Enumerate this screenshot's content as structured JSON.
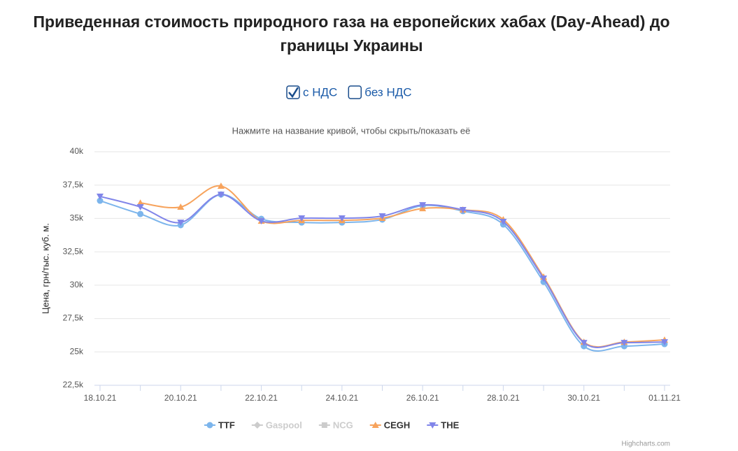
{
  "title": "Приведенная стоимость природного газа на европейских хабах (Day-Ahead) до границы Украины",
  "controls": [
    {
      "label": "с НДС",
      "checked": true
    },
    {
      "label": "без НДС",
      "checked": false
    }
  ],
  "chart_data": {
    "type": "line",
    "subtitle": "Нажмите на название кривой, чтобы скрыть/показать её",
    "y_label": "Цена, грн/тыс. куб. м.",
    "credits": "Highcharts.com",
    "categories": [
      "18.10.21",
      null,
      "20.10.21",
      null,
      "22.10.21",
      null,
      "24.10.21",
      null,
      "26.10.21",
      null,
      "28.10.21",
      null,
      "30.10.21",
      null,
      "01.11.21"
    ],
    "ylim": [
      22500,
      40000
    ],
    "yticks": [
      {
        "value": 22500,
        "label": "22,5k"
      },
      {
        "value": 25000,
        "label": "25k"
      },
      {
        "value": 27500,
        "label": "27,5k"
      },
      {
        "value": 30000,
        "label": "30k"
      },
      {
        "value": 32500,
        "label": "32,5k"
      },
      {
        "value": 35000,
        "label": "35k"
      },
      {
        "value": 37500,
        "label": "37,5k"
      },
      {
        "value": 40000,
        "label": "40k"
      }
    ],
    "grid": true,
    "smooth": true,
    "series": [
      {
        "name": "TTF",
        "color": "#7cb5ec",
        "marker": "circle",
        "visible": true,
        "values": [
          36330,
          35335,
          34500,
          36800,
          34970,
          34700,
          34700,
          34920,
          35960,
          35550,
          34550,
          30250,
          25430,
          25430,
          25590
        ]
      },
      {
        "name": "Gaspool",
        "color": "#cccccc",
        "marker": "diamond",
        "visible": false,
        "values": [
          null,
          null,
          null,
          null,
          null,
          null,
          null,
          null,
          null,
          null,
          null,
          null,
          null,
          null,
          null
        ]
      },
      {
        "name": "NCG",
        "color": "#cccccc",
        "marker": "square",
        "visible": false,
        "values": [
          null,
          null,
          null,
          null,
          null,
          null,
          null,
          null,
          null,
          null,
          null,
          null,
          null,
          null,
          null
        ]
      },
      {
        "name": "CEGH",
        "color": "#f7a35c",
        "marker": "triangle",
        "visible": true,
        "values": [
          null,
          36170,
          35860,
          37430,
          34810,
          34860,
          34860,
          35020,
          35750,
          35650,
          34920,
          30620,
          25740,
          25740,
          25900
        ]
      },
      {
        "name": "THE",
        "color": "#8085e9",
        "marker": "triangle-down",
        "visible": true,
        "values": [
          36650,
          35860,
          34700,
          36800,
          34810,
          35020,
          35020,
          35180,
          36010,
          35650,
          34760,
          30510,
          25690,
          25690,
          25740
        ]
      }
    ]
  }
}
